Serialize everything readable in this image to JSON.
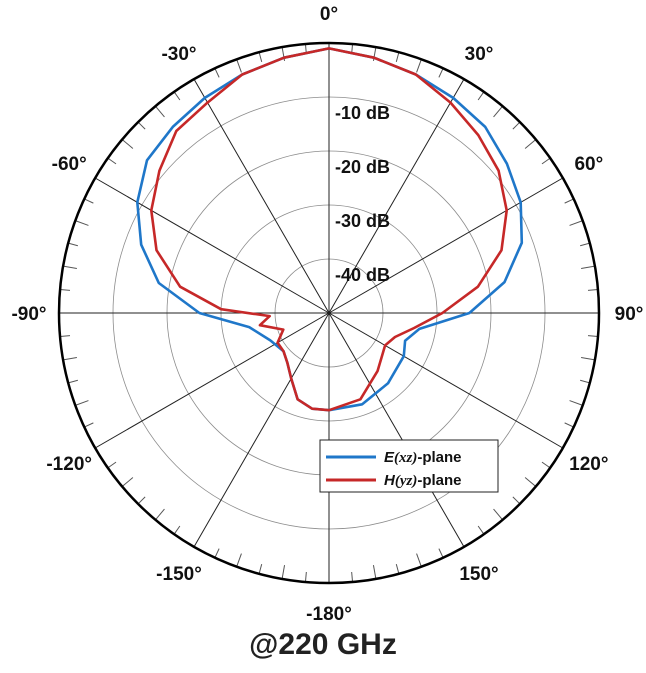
{
  "chart_data": {
    "type": "polar-line",
    "caption": "@220 GHz",
    "angle_labels": [
      {
        "angle": 0,
        "text": "0°"
      },
      {
        "angle": 30,
        "text": "30°"
      },
      {
        "angle": 60,
        "text": "60°"
      },
      {
        "angle": 90,
        "text": "90°"
      },
      {
        "angle": 120,
        "text": "120°"
      },
      {
        "angle": 150,
        "text": "150°"
      },
      {
        "angle": 180,
        "text": "-180°"
      },
      {
        "angle": -150,
        "text": "-150°"
      },
      {
        "angle": -120,
        "text": "-120°"
      },
      {
        "angle": -90,
        "text": "-90°"
      },
      {
        "angle": -60,
        "text": "-60°"
      },
      {
        "angle": -30,
        "text": "-30°"
      }
    ],
    "radial_labels": [
      {
        "value": -10,
        "text": "-10 dB"
      },
      {
        "value": -20,
        "text": "-20 dB"
      },
      {
        "value": -30,
        "text": "-30 dB"
      },
      {
        "value": -40,
        "text": "-40 dB"
      }
    ],
    "rlim": [
      -50,
      0
    ],
    "series": [
      {
        "name_prefix": "E",
        "name_var": "(xz)",
        "name_suffix": "-plane",
        "color": "#1f77c9",
        "points": [
          [
            0,
            -1
          ],
          [
            10,
            -2
          ],
          [
            20,
            -3
          ],
          [
            30,
            -4
          ],
          [
            40,
            -5
          ],
          [
            50,
            -7
          ],
          [
            60,
            -9
          ],
          [
            70,
            -12
          ],
          [
            80,
            -17
          ],
          [
            90,
            -24
          ],
          [
            100,
            -33
          ],
          [
            110,
            -35
          ],
          [
            120,
            -34
          ],
          [
            140,
            -33
          ],
          [
            160,
            -32
          ],
          [
            180,
            -32
          ],
          [
            -170,
            -32
          ],
          [
            -160,
            -33
          ],
          [
            -150,
            -36
          ],
          [
            -140,
            -38
          ],
          [
            -130,
            -39
          ],
          [
            -115,
            -38
          ],
          [
            -100,
            -35
          ],
          [
            -90,
            -26
          ],
          [
            -80,
            -18
          ],
          [
            -70,
            -13
          ],
          [
            -60,
            -9
          ],
          [
            -50,
            -6
          ],
          [
            -40,
            -5
          ],
          [
            -30,
            -4
          ],
          [
            -20,
            -3
          ],
          [
            -10,
            -2
          ],
          [
            0,
            -1
          ]
        ]
      },
      {
        "name_prefix": "H",
        "name_var": "(yz)",
        "name_suffix": "-plane",
        "color": "#c62828",
        "points": [
          [
            0,
            -1
          ],
          [
            10,
            -2
          ],
          [
            20,
            -3
          ],
          [
            30,
            -5
          ],
          [
            40,
            -7
          ],
          [
            50,
            -9
          ],
          [
            60,
            -12
          ],
          [
            70,
            -16
          ],
          [
            80,
            -22
          ],
          [
            90,
            -29
          ],
          [
            100,
            -34
          ],
          [
            110,
            -37
          ],
          [
            120,
            -38
          ],
          [
            140,
            -36
          ],
          [
            160,
            -33
          ],
          [
            180,
            -32
          ],
          [
            -170,
            -32
          ],
          [
            -160,
            -33
          ],
          [
            -150,
            -36
          ],
          [
            -140,
            -38
          ],
          [
            -130,
            -39
          ],
          [
            -120,
            -39
          ],
          [
            -110,
            -41
          ],
          [
            -100,
            -37
          ],
          [
            -93,
            -39
          ],
          [
            -88,
            -30
          ],
          [
            -80,
            -22
          ],
          [
            -70,
            -16
          ],
          [
            -60,
            -12
          ],
          [
            -50,
            -9
          ],
          [
            -40,
            -6
          ],
          [
            -30,
            -5
          ],
          [
            -20,
            -3
          ],
          [
            -10,
            -2
          ],
          [
            0,
            -1
          ]
        ]
      }
    ],
    "grid": true,
    "legend": "bottom-right"
  }
}
